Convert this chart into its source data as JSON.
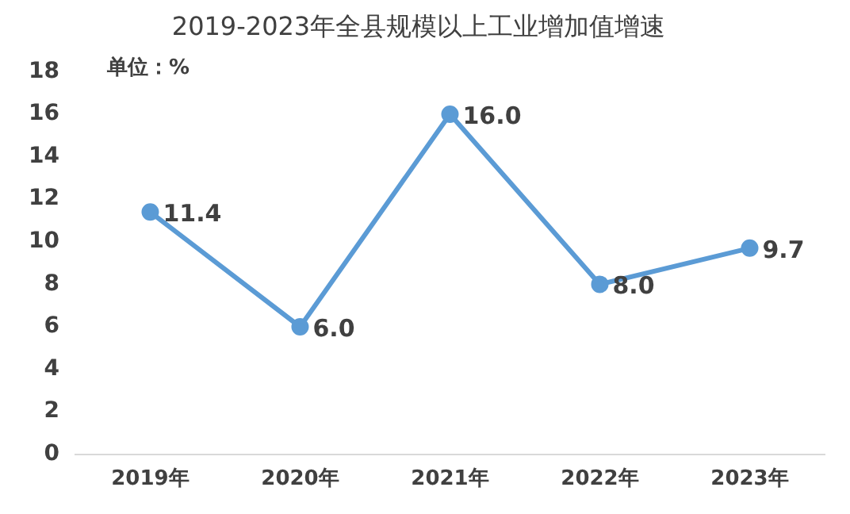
{
  "chart_data": {
    "type": "line",
    "title": "2019-2023年全县规模以上工业增加值增速",
    "annotations": [
      "单位：%"
    ],
    "categories": [
      "2019年",
      "2020年",
      "2021年",
      "2022年",
      "2023年"
    ],
    "series": [
      {
        "color": "#5b9bd5",
        "values": [
          11.4,
          6.0,
          16.0,
          8.0,
          9.7
        ]
      }
    ],
    "value_labels": [
      "11.4",
      "6.0",
      "16.0",
      "8.0",
      "9.7"
    ],
    "ylim": [
      0,
      18
    ],
    "yticks": [
      0,
      2,
      4,
      6,
      8,
      10,
      12,
      14,
      16,
      18
    ],
    "grid": false,
    "legend": false,
    "marker": "circle",
    "line_style": "solid"
  }
}
